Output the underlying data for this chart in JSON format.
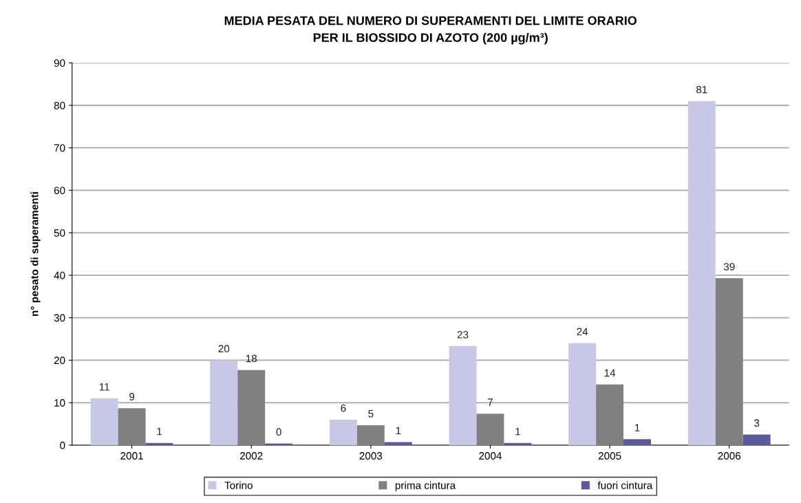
{
  "chart_data": {
    "type": "bar",
    "title": "MEDIA PESATA DEL NUMERO DI SUPERAMENTI DEL LIMITE ORARIO\nPER IL BIOSSIDO DI AZOTO (200 µg/m³)",
    "ylabel": "n° pesato di superamenti",
    "categories": [
      "2001",
      "2002",
      "2003",
      "2004",
      "2005",
      "2006"
    ],
    "series": [
      {
        "name": "Torino",
        "color": "#c8c8e6",
        "values": [
          11,
          20,
          6,
          23.3,
          24,
          81
        ],
        "value_labels": [
          "11",
          "20",
          "6",
          "23",
          "24",
          "81"
        ]
      },
      {
        "name": "prima cintura",
        "color": "#808080",
        "values": [
          8.7,
          17.7,
          4.7,
          7.4,
          14.3,
          39.3
        ],
        "value_labels": [
          "9",
          "18",
          "5",
          "7",
          "14",
          "39"
        ]
      },
      {
        "name": "fuori cintura",
        "color": "#5a5a9c",
        "values": [
          0.5,
          0.4,
          0.7,
          0.5,
          1.4,
          2.5
        ],
        "value_labels": [
          "1",
          "0",
          "1",
          "1",
          "1",
          "3"
        ]
      }
    ],
    "ylim": [
      0,
      90
    ],
    "yticks": [
      0,
      10,
      20,
      30,
      40,
      50,
      60,
      70,
      80,
      90
    ],
    "grid": "y",
    "legend": "bottom"
  }
}
